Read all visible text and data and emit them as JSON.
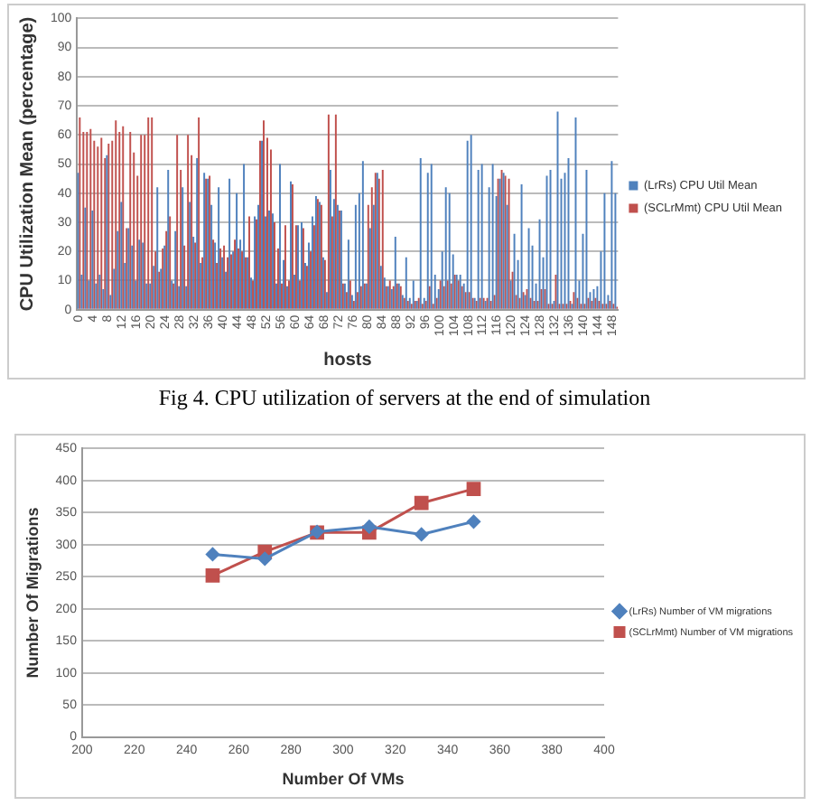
{
  "chart_data": [
    {
      "type": "bar",
      "xlabel": "hosts",
      "ylabel": "CPU Utilization Mean (percentage)",
      "annotations": [
        "Fig 4. CPU utilization of servers at the end of simulation"
      ],
      "categories": [
        "0",
        null,
        null,
        null,
        "4",
        null,
        null,
        null,
        "8",
        null,
        null,
        null,
        "12",
        null,
        null,
        null,
        "16",
        null,
        null,
        null,
        "20",
        null,
        null,
        null,
        "24",
        null,
        null,
        null,
        "28",
        null,
        null,
        null,
        "32",
        null,
        null,
        null,
        "36",
        null,
        null,
        null,
        "40",
        null,
        null,
        null,
        "44",
        null,
        null,
        null,
        "48",
        null,
        null,
        null,
        "52",
        null,
        null,
        null,
        "56",
        null,
        null,
        null,
        "60",
        null,
        null,
        null,
        "64",
        null,
        null,
        null,
        "68",
        null,
        null,
        null,
        "72",
        null,
        null,
        null,
        "76",
        null,
        null,
        null,
        "80",
        null,
        null,
        null,
        "84",
        null,
        null,
        null,
        "88",
        null,
        null,
        null,
        "92",
        null,
        null,
        null,
        "96",
        null,
        null,
        null,
        "100",
        null,
        null,
        null,
        "104",
        null,
        null,
        null,
        "108",
        null,
        null,
        null,
        "112",
        null,
        null,
        null,
        "116",
        null,
        null,
        null,
        "120",
        null,
        null,
        null,
        "124",
        null,
        null,
        null,
        "128",
        null,
        null,
        null,
        "132",
        null,
        null,
        null,
        "136",
        null,
        null,
        null,
        "140",
        null,
        null,
        null,
        "144",
        null,
        null,
        null,
        "148",
        null
      ],
      "series": [
        {
          "name": "(LrRs) CPU Util Mean",
          "color": "#4f81bd",
          "values": [
            47,
            12,
            35,
            10,
            34,
            9,
            12,
            7,
            53,
            5,
            14,
            27,
            37,
            16,
            28,
            22,
            10,
            24,
            23,
            9,
            9,
            15,
            42,
            14,
            22,
            48,
            10,
            27,
            8,
            42,
            8,
            37,
            25,
            52,
            16,
            47,
            45,
            36,
            23,
            42,
            18,
            13,
            45,
            20,
            40,
            24,
            50,
            18,
            11,
            32,
            36,
            58,
            32,
            34,
            33,
            9,
            50,
            17,
            8,
            44,
            12,
            29,
            30,
            16,
            23,
            32,
            39,
            37,
            18,
            6,
            48,
            38,
            36,
            34,
            9,
            24,
            5,
            36,
            40,
            51,
            9,
            28,
            36,
            47,
            15,
            11,
            8,
            7,
            25,
            9,
            5,
            18,
            4,
            10,
            3,
            52,
            4,
            47,
            50,
            12,
            7,
            20,
            42,
            40,
            19,
            12,
            12,
            9,
            58,
            60,
            4,
            48,
            50,
            3,
            42,
            50,
            39,
            45,
            47,
            36,
            10,
            26,
            17,
            43,
            5,
            28,
            22,
            9,
            31,
            18,
            46,
            48,
            3,
            68,
            45,
            47,
            52,
            2,
            66,
            10,
            26,
            48,
            6,
            7,
            8,
            20,
            40,
            5,
            51,
            40
          ]
        },
        {
          "name": "(SCLrMmt) CPU Util Mean",
          "color": "#c0504d",
          "values": [
            66,
            61,
            61,
            62,
            58,
            56,
            59,
            52,
            57,
            58,
            65,
            61,
            63,
            28,
            61,
            54,
            46,
            60,
            60,
            66,
            66,
            20,
            13,
            21,
            27,
            32,
            9,
            60,
            48,
            22,
            60,
            53,
            23,
            66,
            18,
            45,
            46,
            24,
            16,
            21,
            22,
            18,
            19,
            24,
            21,
            20,
            18,
            32,
            10,
            31,
            58,
            65,
            59,
            55,
            30,
            21,
            9,
            29,
            10,
            43,
            29,
            10,
            28,
            15,
            20,
            29,
            38,
            36,
            17,
            67,
            32,
            67,
            34,
            9,
            6,
            10,
            3,
            6,
            8,
            9,
            36,
            42,
            47,
            45,
            48,
            8,
            10,
            8,
            9,
            8,
            4,
            3,
            2,
            3,
            4,
            2,
            3,
            8,
            2,
            4,
            10,
            8,
            10,
            9,
            12,
            10,
            8,
            6,
            6,
            4,
            3,
            4,
            4,
            4,
            3,
            5,
            45,
            48,
            46,
            45,
            13,
            5,
            4,
            6,
            7,
            4,
            3,
            3,
            7,
            7,
            2,
            2,
            12,
            2,
            2,
            2,
            3,
            6,
            4,
            2,
            2,
            4,
            3,
            4,
            3,
            2,
            2,
            3,
            2,
            1
          ]
        }
      ],
      "ylim": [
        0,
        100
      ],
      "yticks": [
        0,
        10,
        20,
        30,
        40,
        50,
        60,
        70,
        80,
        90,
        100
      ],
      "grid": "y",
      "legend": "right"
    },
    {
      "type": "line",
      "xlabel": "Number Of VMs",
      "ylabel": "Number Of Migrations",
      "x": [
        250,
        270,
        290,
        310,
        330,
        350
      ],
      "series": [
        {
          "name": "(LrRs) Number of VM migrations",
          "color": "#4f81bd",
          "marker": "diamond",
          "values": [
            285,
            278,
            320,
            328,
            316,
            336
          ]
        },
        {
          "name": "(SCLrMmt) Number of VM migrations",
          "color": "#c0504d",
          "marker": "square",
          "values": [
            252,
            289,
            319,
            319,
            365,
            387
          ]
        }
      ],
      "xlim": [
        200,
        400
      ],
      "xticks": [
        200,
        220,
        240,
        260,
        280,
        300,
        320,
        340,
        360,
        380,
        400
      ],
      "ylim": [
        0,
        450
      ],
      "yticks": [
        0,
        50,
        100,
        150,
        200,
        250,
        300,
        350,
        400,
        450
      ],
      "grid": "y",
      "legend": "right"
    }
  ]
}
